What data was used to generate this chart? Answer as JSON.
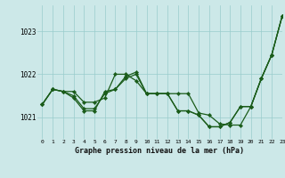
{
  "xlabel": "Graphe pression niveau de la mer (hPa)",
  "ylim": [
    1020.5,
    1023.6
  ],
  "xlim": [
    -0.5,
    23
  ],
  "yticks": [
    1021,
    1022,
    1023
  ],
  "xticks": [
    0,
    1,
    2,
    3,
    4,
    5,
    6,
    7,
    8,
    9,
    10,
    11,
    12,
    13,
    14,
    15,
    16,
    17,
    18,
    19,
    20,
    21,
    22,
    23
  ],
  "bg_color": "#cce8e8",
  "grid_color": "#99cccc",
  "line_color": "#1a5c1a",
  "line_width": 0.9,
  "marker": "D",
  "marker_size": 2.2,
  "series": [
    [
      1021.3,
      1021.65,
      1021.6,
      1021.6,
      1021.35,
      1021.35,
      1021.45,
      1022.0,
      1022.0,
      1021.85,
      1021.55,
      1021.55,
      1021.55,
      1021.55,
      1021.55,
      1021.1,
      1021.05,
      1020.85,
      1020.82,
      1020.82,
      1021.25,
      1021.9,
      1022.45,
      1023.35
    ],
    [
      1021.3,
      1021.65,
      1021.6,
      1021.5,
      1021.2,
      1021.2,
      1021.55,
      1021.65,
      1021.9,
      1022.0,
      1021.55,
      1021.55,
      1021.55,
      1021.15,
      1021.15,
      1021.05,
      1020.78,
      1020.78,
      1020.88,
      1021.25,
      1021.25,
      1021.9,
      1022.45,
      1023.35
    ],
    [
      1021.3,
      1021.65,
      1021.6,
      1021.45,
      1021.15,
      1021.15,
      1021.6,
      1021.65,
      1021.95,
      1022.05,
      1021.55,
      1021.55,
      1021.55,
      1021.15,
      1021.15,
      1021.05,
      1020.78,
      1020.78,
      1020.88,
      1021.25,
      1021.25,
      1021.9,
      1022.45,
      1023.35
    ]
  ]
}
